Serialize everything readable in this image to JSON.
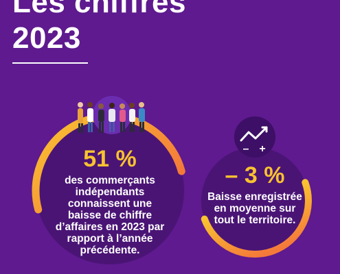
{
  "header": {
    "title_line1": "Les chiffres",
    "title_line2": "2023"
  },
  "stat_left": {
    "value": "51 %",
    "description_lines": [
      "des commerçants",
      "indépendants",
      "connaissent une",
      "baisse de chiffre",
      "d’affaires en 2023 par",
      "rapport à l’année",
      "précédente."
    ]
  },
  "stat_right": {
    "value": "– 3 %",
    "description_lines": [
      "Baisse enregistrée",
      "en moyenne sur",
      "tout le territoire."
    ],
    "icon_minus": "–",
    "icon_plus": "+"
  },
  "colors": {
    "background": "#5e1a8e",
    "circle_fill": "#4a1475",
    "arc_start": "#f9c230",
    "arc_end": "#f47a3a",
    "accent_text": "#f9c230",
    "icon_badge": "#3d0f66"
  },
  "icons": [
    "people-group-illustration",
    "trend-chart-icon"
  ]
}
